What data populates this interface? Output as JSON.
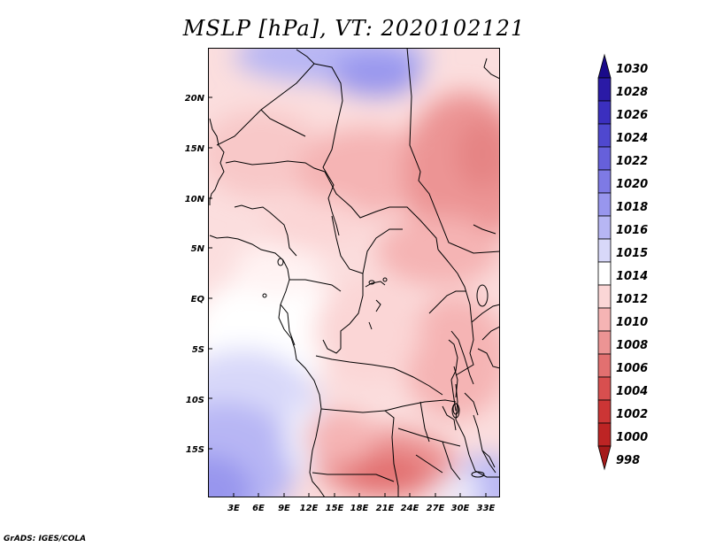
{
  "title": "MSLP [hPa], VT: 2020102121",
  "credit": "GrADS: IGES/COLA",
  "map": {
    "lat_labels": [
      "20N",
      "15N",
      "10N",
      "5N",
      "EQ",
      "5S",
      "10S",
      "15S"
    ],
    "lon_labels": [
      "3E",
      "6E",
      "9E",
      "12E",
      "15E",
      "18E",
      "21E",
      "24E",
      "27E",
      "30E",
      "33E"
    ]
  },
  "colorbar": {
    "levels": [
      "1030",
      "1028",
      "1026",
      "1024",
      "1022",
      "1020",
      "1018",
      "1016",
      "1015",
      "1014",
      "1012",
      "1010",
      "1008",
      "1006",
      "1004",
      "1002",
      "1000",
      "998"
    ],
    "colors": [
      "#1a0a8a",
      "#2a1aa6",
      "#3b2fbf",
      "#4f48cf",
      "#6660db",
      "#7e7ae5",
      "#9896ee",
      "#b7b6f4",
      "#d8d8f9",
      "#ffffff",
      "#fbd6d6",
      "#f5b4b4",
      "#ec9494",
      "#e27070",
      "#d84f4f",
      "#cc3535",
      "#bd2424",
      "#a51a1a"
    ]
  }
}
